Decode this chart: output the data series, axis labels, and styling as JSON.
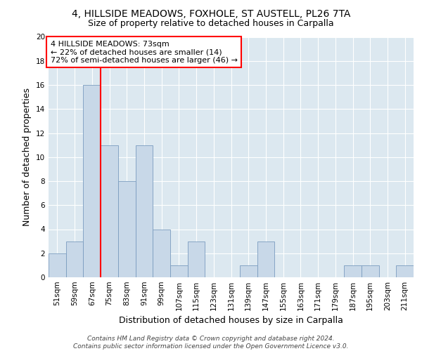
{
  "title1": "4, HILLSIDE MEADOWS, FOXHOLE, ST AUSTELL, PL26 7TA",
  "title2": "Size of property relative to detached houses in Carpalla",
  "xlabel": "Distribution of detached houses by size in Carpalla",
  "ylabel": "Number of detached properties",
  "categories": [
    "51sqm",
    "59sqm",
    "67sqm",
    "75sqm",
    "83sqm",
    "91sqm",
    "99sqm",
    "107sqm",
    "115sqm",
    "123sqm",
    "131sqm",
    "139sqm",
    "147sqm",
    "155sqm",
    "163sqm",
    "171sqm",
    "179sqm",
    "187sqm",
    "195sqm",
    "203sqm",
    "211sqm"
  ],
  "values": [
    2,
    3,
    16,
    11,
    8,
    11,
    4,
    1,
    3,
    0,
    0,
    1,
    3,
    0,
    0,
    0,
    0,
    1,
    1,
    0,
    1
  ],
  "bar_color": "#c8d8e8",
  "bar_edge_color": "#7a9cbf",
  "annotation_text": "4 HILLSIDE MEADOWS: 73sqm\n← 22% of detached houses are smaller (14)\n72% of semi-detached houses are larger (46) →",
  "annotation_box_color": "white",
  "annotation_box_edge_color": "red",
  "vline_color": "red",
  "ylim": [
    0,
    20
  ],
  "yticks": [
    0,
    2,
    4,
    6,
    8,
    10,
    12,
    14,
    16,
    18,
    20
  ],
  "background_color": "#dce8f0",
  "footer_text": "Contains HM Land Registry data © Crown copyright and database right 2024.\nContains public sector information licensed under the Open Government Licence v3.0.",
  "title1_fontsize": 10,
  "title2_fontsize": 9,
  "xlabel_fontsize": 9,
  "ylabel_fontsize": 9,
  "tick_fontsize": 7.5,
  "annotation_fontsize": 8,
  "footer_fontsize": 6.5
}
